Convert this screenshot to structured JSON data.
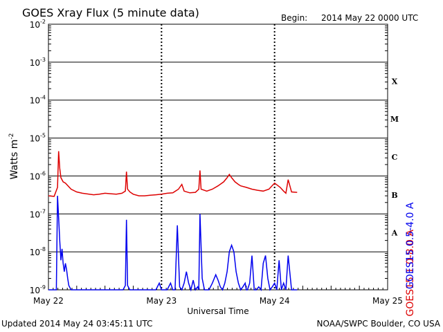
{
  "chart_data": {
    "type": "line",
    "title": "GOES Xray Flux (5 minute data)",
    "begin_label": "Begin:",
    "begin_value": "2014 May 22 0000 UTC",
    "xlabel": "Universal Time",
    "ylabel_text": "Watts m",
    "ylabel_sup": "-2",
    "x_ticks": [
      "May 22",
      "May 23",
      "May 24",
      "May 25"
    ],
    "x_range_days": [
      0,
      3
    ],
    "y_scale": "log",
    "ylim": [
      1e-09,
      0.01
    ],
    "y_ticks": [
      {
        "base": "10",
        "exp": "-9"
      },
      {
        "base": "10",
        "exp": "-8"
      },
      {
        "base": "10",
        "exp": "-7"
      },
      {
        "base": "10",
        "exp": "-6"
      },
      {
        "base": "10",
        "exp": "-5"
      },
      {
        "base": "10",
        "exp": "-4"
      },
      {
        "base": "10",
        "exp": "-3"
      },
      {
        "base": "10",
        "exp": "-2"
      }
    ],
    "flare_classes": [
      "A",
      "B",
      "C",
      "M",
      "X"
    ],
    "series": [
      {
        "name": "GOES15 1.0-8.0 A",
        "color": "#dd0000",
        "x_days": [
          0.0,
          0.05,
          0.08,
          0.09,
          0.1,
          0.11,
          0.13,
          0.15,
          0.2,
          0.25,
          0.3,
          0.4,
          0.45,
          0.5,
          0.55,
          0.6,
          0.65,
          0.68,
          0.69,
          0.7,
          0.72,
          0.75,
          0.8,
          0.85,
          0.9,
          0.95,
          1.0,
          1.05,
          1.1,
          1.15,
          1.18,
          1.2,
          1.25,
          1.3,
          1.33,
          1.34,
          1.35,
          1.4,
          1.45,
          1.5,
          1.55,
          1.58,
          1.6,
          1.62,
          1.65,
          1.68,
          1.7,
          1.75,
          1.8,
          1.85,
          1.9,
          1.95,
          2.0,
          2.05,
          2.08,
          2.1,
          2.12,
          2.15,
          2.2
        ],
        "y": [
          3e-07,
          2.9e-07,
          5e-07,
          4.5e-06,
          1.6e-06,
          9e-07,
          7e-07,
          6.5e-07,
          4.5e-07,
          3.8e-07,
          3.5e-07,
          3.2e-07,
          3.3e-07,
          3.5e-07,
          3.4e-07,
          3.3e-07,
          3.5e-07,
          4e-07,
          1.3e-06,
          4.5e-07,
          3.8e-07,
          3.3e-07,
          3e-07,
          3e-07,
          3.1e-07,
          3.2e-07,
          3.3e-07,
          3.5e-07,
          3.6e-07,
          4.5e-07,
          6e-07,
          4e-07,
          3.6e-07,
          3.7e-07,
          4.5e-07,
          1.4e-06,
          4.5e-07,
          4e-07,
          4.5e-07,
          5.5e-07,
          7e-07,
          9e-07,
          1.1e-06,
          9e-07,
          7e-07,
          6e-07,
          5.5e-07,
          5e-07,
          4.5e-07,
          4.2e-07,
          4e-07,
          4.5e-07,
          6.5e-07,
          5e-07,
          4e-07,
          3.5e-07,
          8e-07,
          3.8e-07,
          3.7e-07
        ]
      },
      {
        "name": "GOES15 0.5-4.0 A",
        "color": "#0000ee",
        "x_days": [
          0.0,
          0.07,
          0.08,
          0.09,
          0.1,
          0.11,
          0.12,
          0.13,
          0.14,
          0.15,
          0.16,
          0.17,
          0.18,
          0.2,
          0.22,
          0.25,
          0.3,
          0.4,
          0.5,
          0.6,
          0.66,
          0.68,
          0.69,
          0.7,
          0.72,
          0.75,
          0.8,
          0.85,
          0.9,
          0.95,
          0.98,
          1.0,
          1.02,
          1.05,
          1.08,
          1.1,
          1.12,
          1.14,
          1.16,
          1.18,
          1.2,
          1.22,
          1.24,
          1.26,
          1.28,
          1.3,
          1.32,
          1.33,
          1.34,
          1.36,
          1.38,
          1.4,
          1.42,
          1.45,
          1.48,
          1.5,
          1.52,
          1.54,
          1.56,
          1.58,
          1.6,
          1.62,
          1.64,
          1.66,
          1.68,
          1.7,
          1.72,
          1.74,
          1.75,
          1.76,
          1.78,
          1.8,
          1.82,
          1.84,
          1.86,
          1.88,
          1.9,
          1.92,
          1.94,
          1.96,
          1.98,
          2.0,
          2.02,
          2.04,
          2.06,
          2.08,
          2.1,
          2.12,
          2.15,
          2.2
        ],
        "y": [
          1e-09,
          1e-09,
          3e-07,
          8e-08,
          2e-08,
          6e-09,
          1.2e-08,
          5e-09,
          3e-09,
          5e-09,
          3.5e-09,
          2e-09,
          1.3e-09,
          1e-09,
          1e-09,
          1e-09,
          1e-09,
          1e-09,
          1e-09,
          1e-09,
          1e-09,
          1.3e-09,
          7e-08,
          1.3e-09,
          1e-09,
          1e-09,
          1e-09,
          1e-09,
          1e-09,
          1e-09,
          1.5e-09,
          1e-09,
          1e-09,
          1e-09,
          1.5e-09,
          1e-09,
          1e-09,
          5e-08,
          1.2e-09,
          1e-09,
          1.5e-09,
          3e-09,
          1.5e-09,
          1e-09,
          1.8e-09,
          1e-09,
          1.2e-09,
          1e-09,
          1e-07,
          2e-09,
          1e-09,
          1e-09,
          1e-09,
          1.5e-09,
          2.5e-09,
          1.8e-09,
          1.2e-09,
          1e-09,
          1.5e-09,
          3e-09,
          1e-08,
          1.5e-08,
          1e-08,
          3e-09,
          1.5e-09,
          1e-09,
          1.2e-09,
          1.5e-09,
          1e-09,
          1e-09,
          1.5e-09,
          8e-09,
          1e-09,
          1e-09,
          1.2e-09,
          1e-09,
          5e-09,
          8e-09,
          2e-09,
          1e-09,
          1.2e-09,
          1.5e-09,
          1e-09,
          6e-09,
          1e-09,
          1.5e-09,
          1e-09,
          8e-09,
          1e-09,
          1e-09
        ]
      }
    ]
  },
  "footer": {
    "updated": "Updated 2014 May 24 03:45:11 UTC",
    "credit": "NOAA/SWPC Boulder, CO USA"
  }
}
